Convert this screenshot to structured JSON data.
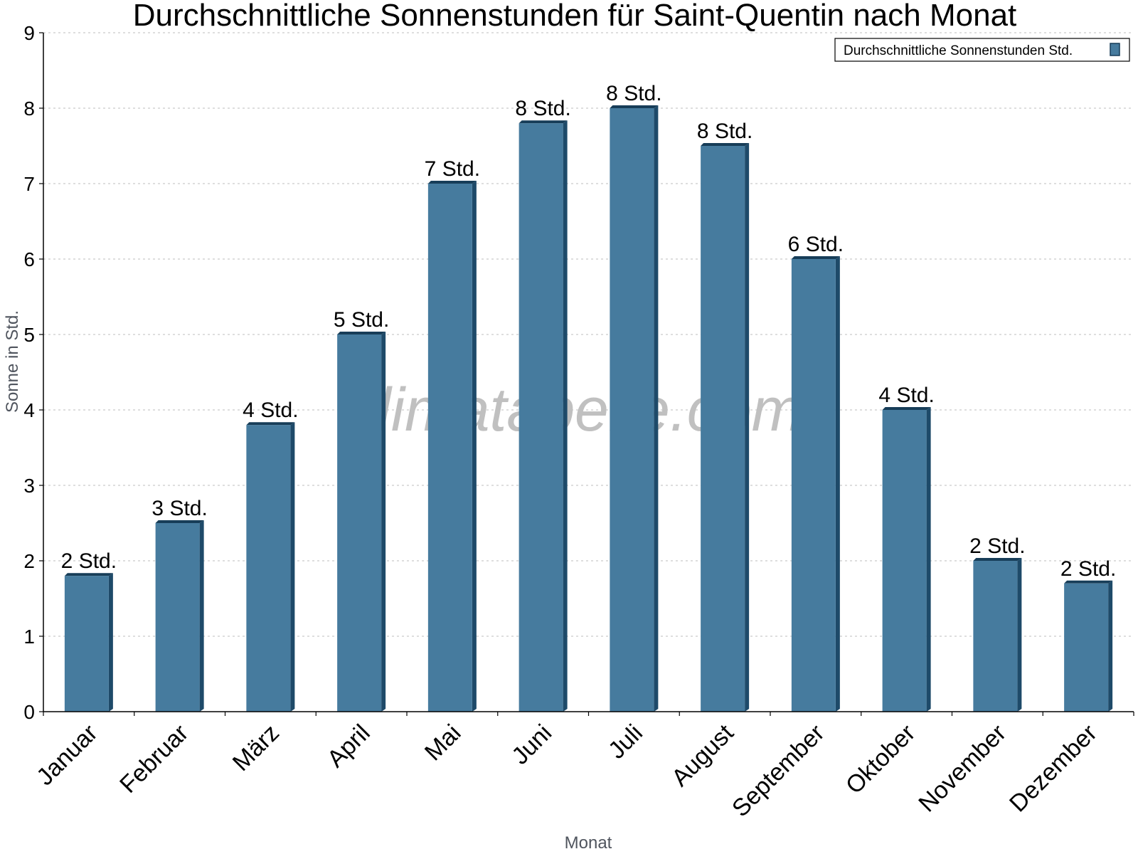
{
  "chart_data": {
    "type": "bar",
    "title": "Durchschnittliche Sonnenstunden für Saint-Quentin nach Monat",
    "xlabel": "Monat",
    "ylabel": "Sonne in Std.",
    "categories": [
      "Januar",
      "Februar",
      "März",
      "April",
      "Mai",
      "Juni",
      "Juli",
      "August",
      "September",
      "Oktober",
      "November",
      "Dezember"
    ],
    "series": [
      {
        "name": "Durchschnittliche Sonnenstunden Std.",
        "values": [
          1.8,
          2.5,
          3.8,
          5.0,
          7.0,
          7.8,
          8.0,
          7.5,
          6.0,
          4.0,
          2.0,
          1.7
        ],
        "labels": [
          "2 Std.",
          "3 Std.",
          "4 Std.",
          "5 Std.",
          "7 Std.",
          "8 Std.",
          "8 Std.",
          "8 Std.",
          "6 Std.",
          "4 Std.",
          "2 Std.",
          "2 Std."
        ]
      }
    ],
    "ylim": [
      0,
      9
    ],
    "yticks": [
      "0",
      "1",
      "2",
      "3",
      "4",
      "5",
      "6",
      "7",
      "8",
      "9"
    ],
    "grid": true,
    "legend_position": "top-right",
    "watermark": "klimatabelle.com",
    "colors": {
      "bar": "#467b9e",
      "bar_side": "#1e4a69",
      "bar_top": "#173d58",
      "grid": "#bcbcbc",
      "axis": "#000000"
    }
  }
}
